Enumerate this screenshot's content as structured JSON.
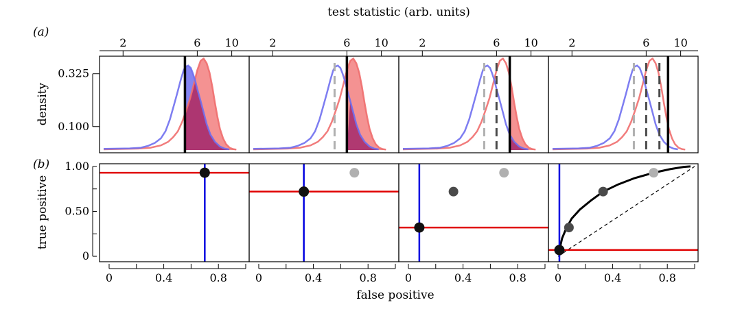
{
  "figure": {
    "panel_a_label": "(a)",
    "panel_b_label": "(b)",
    "top_axis_title": "test statistic (arb. units)",
    "density_axis_title": "density",
    "tp_axis_title": "true positive",
    "fp_axis_title": "false positive"
  },
  "colors": {
    "negative_class": "#6f6ff0",
    "positive_class": "#f06e6e",
    "overlap": "#a8306e",
    "threshold_current": "#000000",
    "threshold_previous_light": "#b0b0b0",
    "threshold_previous_dark": "#4a4a4a",
    "fp_line": "#0000e0",
    "tp_line": "#e00000",
    "roc_curve": "#000000"
  },
  "chart_data": [
    {
      "type": "area",
      "panel": "a",
      "xlabel": "test statistic (arb. units)",
      "ylabel": "density",
      "x_ticks": [
        2,
        6,
        10
      ],
      "x_tick_labels": [
        "2",
        "6",
        "10"
      ],
      "y_ticks": [
        0.1,
        0.325
      ],
      "y_tick_labels": [
        "0.100",
        "0.325"
      ],
      "xlim": [
        1.5,
        11.0
      ],
      "ylim": [
        0.0,
        0.4
      ],
      "log_x": true,
      "series": [
        {
          "class": "negative",
          "x": [
            1.5,
            2.2,
            2.6,
            2.9,
            3.2,
            3.5,
            3.75,
            4.0,
            4.2,
            4.45,
            4.7,
            4.9,
            5.05,
            5.25,
            5.45,
            5.6,
            5.8,
            6.0,
            6.3,
            6.6,
            6.9,
            7.3,
            7.8,
            8.4,
            9.0,
            9.6
          ],
          "y": [
            0.005,
            0.007,
            0.01,
            0.018,
            0.03,
            0.05,
            0.08,
            0.13,
            0.18,
            0.24,
            0.3,
            0.34,
            0.355,
            0.36,
            0.35,
            0.33,
            0.3,
            0.26,
            0.21,
            0.16,
            0.11,
            0.065,
            0.035,
            0.015,
            0.006,
            0.003
          ]
        },
        {
          "class": "positive",
          "x": [
            1.5,
            2.5,
            3.0,
            3.5,
            3.9,
            4.2,
            4.5,
            4.8,
            5.1,
            5.4,
            5.7,
            6.0,
            6.3,
            6.6,
            6.9,
            7.2,
            7.5,
            7.8,
            8.1,
            8.4,
            8.8,
            9.2,
            9.7,
            10.2,
            10.7
          ],
          "y": [
            0.003,
            0.006,
            0.01,
            0.02,
            0.035,
            0.055,
            0.08,
            0.12,
            0.17,
            0.22,
            0.28,
            0.34,
            0.38,
            0.39,
            0.37,
            0.33,
            0.27,
            0.2,
            0.14,
            0.09,
            0.05,
            0.025,
            0.01,
            0.004,
            0.002
          ]
        }
      ],
      "thresholds": [
        5.0,
        6.0,
        7.3,
        8.3
      ],
      "sub_panels": [
        {
          "threshold_index": 0,
          "fill_above_threshold": [
            "negative",
            "positive"
          ],
          "previous_thresholds": []
        },
        {
          "threshold_index": 1,
          "fill_above_threshold": [
            "positive"
          ],
          "previous_thresholds": [
            0
          ]
        },
        {
          "threshold_index": 2,
          "fill_above_threshold": [
            "positive"
          ],
          "previous_thresholds": [
            0,
            1
          ]
        },
        {
          "threshold_index": 3,
          "fill_above_threshold": [],
          "previous_thresholds": [
            0,
            1,
            2
          ]
        }
      ]
    },
    {
      "type": "scatter",
      "panel": "b",
      "xlabel": "false positive",
      "ylabel": "true positive",
      "x_ticks": [
        0,
        0.4,
        0.8
      ],
      "x_tick_labels": [
        "0",
        "0.4",
        "0.8"
      ],
      "y_ticks": [
        0,
        0.5,
        1.0
      ],
      "y_tick_labels": [
        "0",
        "0.50",
        "1.00"
      ],
      "xlim": [
        -0.03,
        1.0
      ],
      "ylim": [
        -0.03,
        1.03
      ],
      "roc_points": [
        {
          "fp": 0.7,
          "tp": 0.93
        },
        {
          "fp": 0.33,
          "tp": 0.72
        },
        {
          "fp": 0.08,
          "tp": 0.32
        },
        {
          "fp": 0.01,
          "tp": 0.07
        }
      ],
      "roc_curve": {
        "fp": [
          0.01,
          0.03,
          0.06,
          0.1,
          0.16,
          0.24,
          0.33,
          0.44,
          0.56,
          0.7,
          0.82,
          0.92,
          0.97
        ],
        "tp": [
          0.07,
          0.2,
          0.31,
          0.42,
          0.52,
          0.62,
          0.72,
          0.8,
          0.87,
          0.93,
          0.97,
          0.995,
          1.0
        ]
      },
      "chance_line": true
    }
  ]
}
